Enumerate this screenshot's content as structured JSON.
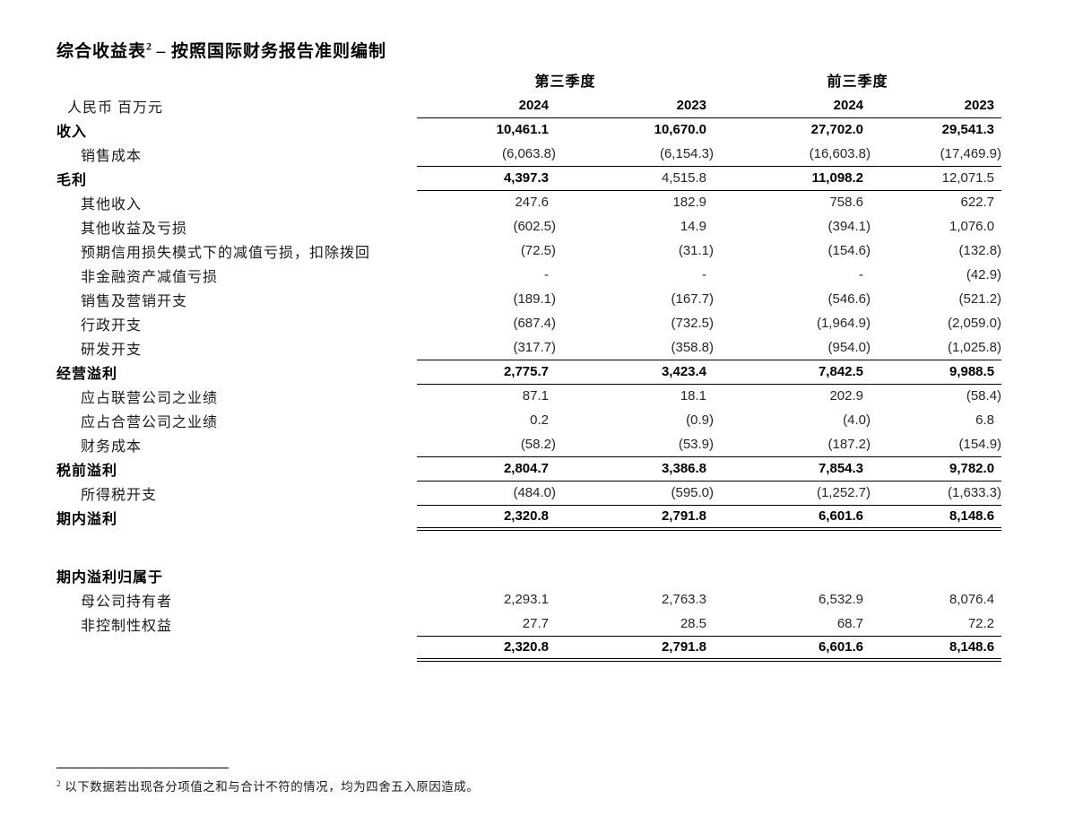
{
  "title": {
    "main": "综合收益表",
    "superscript": "2",
    "rest": " – 按照国际财务报告准则编制"
  },
  "table": {
    "unit_label": "人民币 百万元",
    "column_groups": [
      {
        "label": "第三季度"
      },
      {
        "label": "前三季度"
      }
    ],
    "year_headers": [
      "2024",
      "2023",
      "2024",
      "2023"
    ],
    "rows": [
      {
        "label": "收入",
        "indent": false,
        "bold_label": true,
        "values": [
          "10,461.1",
          "10,670.0",
          "27,702.0",
          "29,541.3"
        ],
        "bold_values": [
          true,
          true,
          true,
          true
        ],
        "border_bottom": false
      },
      {
        "label": "销售成本",
        "indent": true,
        "bold_label": false,
        "values": [
          "(6,063.8)",
          "(6,154.3)",
          "(16,603.8)",
          "(17,469.9)"
        ],
        "bold_values": [
          false,
          false,
          false,
          false
        ],
        "border_bottom": "single"
      },
      {
        "label": "毛利",
        "indent": false,
        "bold_label": true,
        "values": [
          "4,397.3",
          "4,515.8",
          "11,098.2",
          "12,071.5"
        ],
        "bold_values": [
          true,
          false,
          true,
          false
        ],
        "border_bottom": "single"
      },
      {
        "label": "其他收入",
        "indent": true,
        "bold_label": false,
        "values": [
          "247.6",
          "182.9",
          "758.6",
          "622.7"
        ],
        "bold_values": [
          false,
          false,
          false,
          false
        ],
        "border_bottom": false
      },
      {
        "label": "其他收益及亏损",
        "indent": true,
        "bold_label": false,
        "values": [
          "(602.5)",
          "14.9",
          "(394.1)",
          "1,076.0"
        ],
        "bold_values": [
          false,
          false,
          false,
          false
        ],
        "border_bottom": false
      },
      {
        "label": "预期信用损失模式下的减值亏损，扣除拨回",
        "indent": true,
        "bold_label": false,
        "values": [
          "(72.5)",
          "(31.1)",
          "(154.6)",
          "(132.8)"
        ],
        "bold_values": [
          false,
          false,
          false,
          false
        ],
        "border_bottom": false
      },
      {
        "label": "非金融资产减值亏损",
        "indent": true,
        "bold_label": false,
        "values": [
          "-",
          "-",
          "-",
          "(42.9)"
        ],
        "bold_values": [
          false,
          false,
          false,
          false
        ],
        "border_bottom": false
      },
      {
        "label": "销售及营销开支",
        "indent": true,
        "bold_label": false,
        "values": [
          "(189.1)",
          "(167.7)",
          "(546.6)",
          "(521.2)"
        ],
        "bold_values": [
          false,
          false,
          false,
          false
        ],
        "border_bottom": false
      },
      {
        "label": "行政开支",
        "indent": true,
        "bold_label": false,
        "values": [
          "(687.4)",
          "(732.5)",
          "(1,964.9)",
          "(2,059.0)"
        ],
        "bold_values": [
          false,
          false,
          false,
          false
        ],
        "border_bottom": false
      },
      {
        "label": "研发开支",
        "indent": true,
        "bold_label": false,
        "values": [
          "(317.7)",
          "(358.8)",
          "(954.0)",
          "(1,025.8)"
        ],
        "bold_values": [
          false,
          false,
          false,
          false
        ],
        "border_bottom": "single"
      },
      {
        "label": "经营溢利",
        "indent": false,
        "bold_label": true,
        "values": [
          "2,775.7",
          "3,423.4",
          "7,842.5",
          "9,988.5"
        ],
        "bold_values": [
          true,
          true,
          true,
          true
        ],
        "border_bottom": "single"
      },
      {
        "label": "应占联营公司之业绩",
        "indent": true,
        "bold_label": false,
        "values": [
          "87.1",
          "18.1",
          "202.9",
          "(58.4)"
        ],
        "bold_values": [
          false,
          false,
          false,
          false
        ],
        "border_bottom": false
      },
      {
        "label": "应占合营公司之业绩",
        "indent": true,
        "bold_label": false,
        "values": [
          "0.2",
          "(0.9)",
          "(4.0)",
          "6.8"
        ],
        "bold_values": [
          false,
          false,
          false,
          false
        ],
        "border_bottom": false
      },
      {
        "label": "财务成本",
        "indent": true,
        "bold_label": false,
        "values": [
          "(58.2)",
          "(53.9)",
          "(187.2)",
          "(154.9)"
        ],
        "bold_values": [
          false,
          false,
          false,
          false
        ],
        "border_bottom": "single"
      },
      {
        "label": "税前溢利",
        "indent": false,
        "bold_label": true,
        "values": [
          "2,804.7",
          "3,386.8",
          "7,854.3",
          "9,782.0"
        ],
        "bold_values": [
          true,
          true,
          true,
          true
        ],
        "border_bottom": "single"
      },
      {
        "label": "所得税开支",
        "indent": true,
        "bold_label": false,
        "values": [
          "(484.0)",
          "(595.0)",
          "(1,252.7)",
          "(1,633.3)"
        ],
        "bold_values": [
          false,
          false,
          false,
          false
        ],
        "border_bottom": "single"
      },
      {
        "label": "期内溢利",
        "indent": false,
        "bold_label": true,
        "values": [
          "2,320.8",
          "2,791.8",
          "6,601.6",
          "8,148.6"
        ],
        "bold_values": [
          true,
          true,
          true,
          true
        ],
        "border_bottom": "double"
      },
      {
        "type": "spacer"
      },
      {
        "label": "期内溢利归属于",
        "indent": false,
        "bold_label": true,
        "values": [
          "",
          "",
          "",
          ""
        ],
        "bold_values": [
          false,
          false,
          false,
          false
        ],
        "border_bottom": false
      },
      {
        "label": "母公司持有者",
        "indent": true,
        "bold_label": false,
        "values": [
          "2,293.1",
          "2,763.3",
          "6,532.9",
          "8,076.4"
        ],
        "bold_values": [
          false,
          false,
          false,
          false
        ],
        "border_bottom": false
      },
      {
        "label": "非控制性权益",
        "indent": true,
        "bold_label": false,
        "values": [
          "27.7",
          "28.5",
          "68.7",
          "72.2"
        ],
        "bold_values": [
          false,
          false,
          false,
          false
        ],
        "border_bottom": "single"
      },
      {
        "label": "",
        "indent": false,
        "bold_label": false,
        "values": [
          "2,320.8",
          "2,791.8",
          "6,601.6",
          "8,148.6"
        ],
        "bold_values": [
          true,
          true,
          true,
          true
        ],
        "border_bottom": "double"
      }
    ]
  },
  "footnote": {
    "superscript": "2",
    "text": "以下数据若出现各分项值之和与合计不符的情况，均为四舍五入原因造成。"
  }
}
